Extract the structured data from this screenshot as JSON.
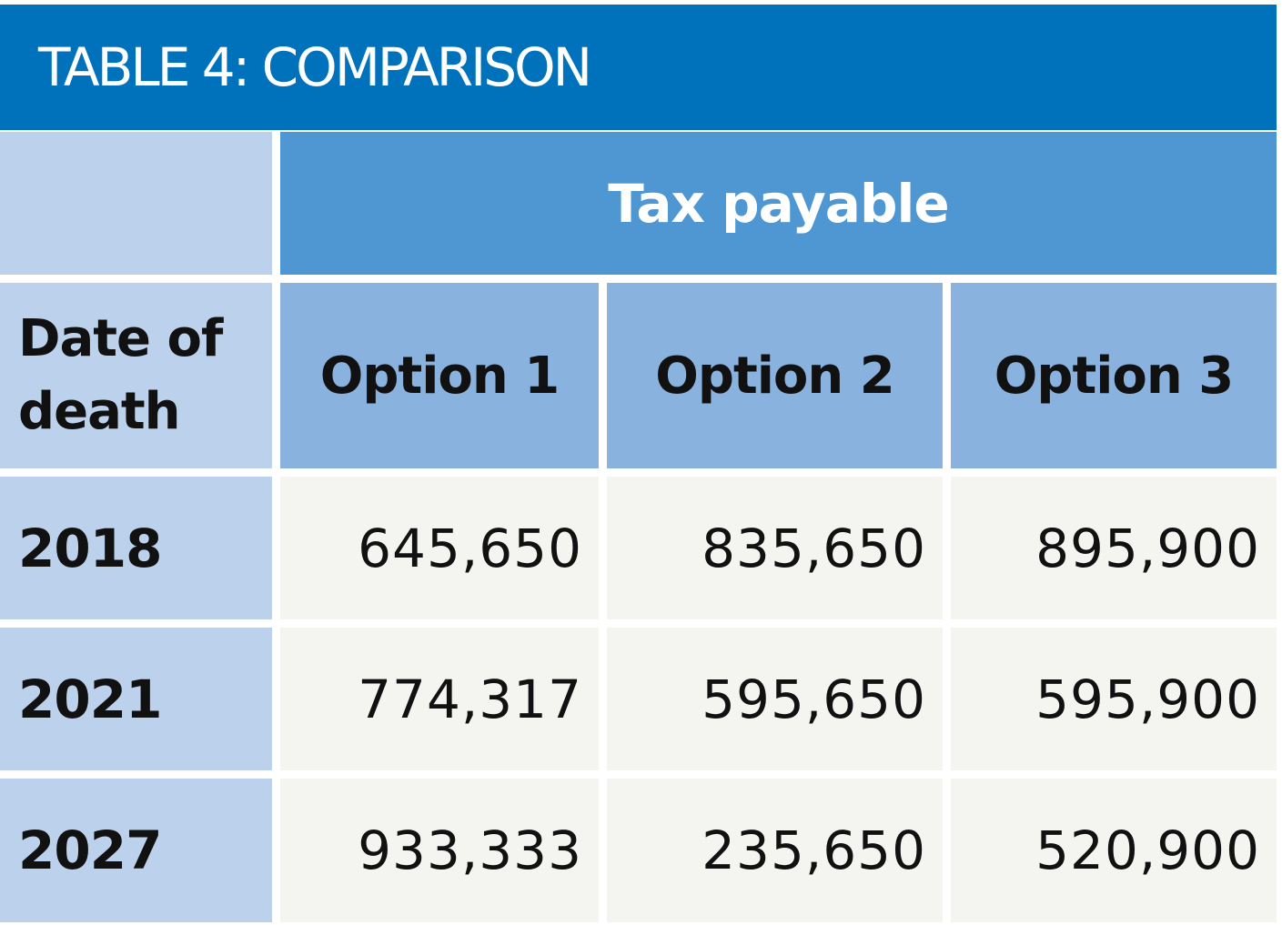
{
  "title": "TABLE 4: COMPARISON",
  "group_header": "Tax payable",
  "stub_header": "Date of death",
  "columns": [
    "Option 1",
    "Option 2",
    "Option 3"
  ],
  "rows": [
    {
      "label": "2018",
      "values": [
        "645,650",
        "835,650",
        "895,900"
      ]
    },
    {
      "label": "2021",
      "values": [
        "774,317",
        "595,650",
        "595,900"
      ]
    },
    {
      "label": "2027",
      "values": [
        "933,333",
        "235,650",
        "520,900"
      ]
    }
  ],
  "colors": {
    "title_bar": "#0072bb",
    "group_header": "#4e97d3",
    "column_header": "#8ab2df",
    "row_header": "#bcd1ec",
    "value_cell": "#f4f4f1"
  }
}
